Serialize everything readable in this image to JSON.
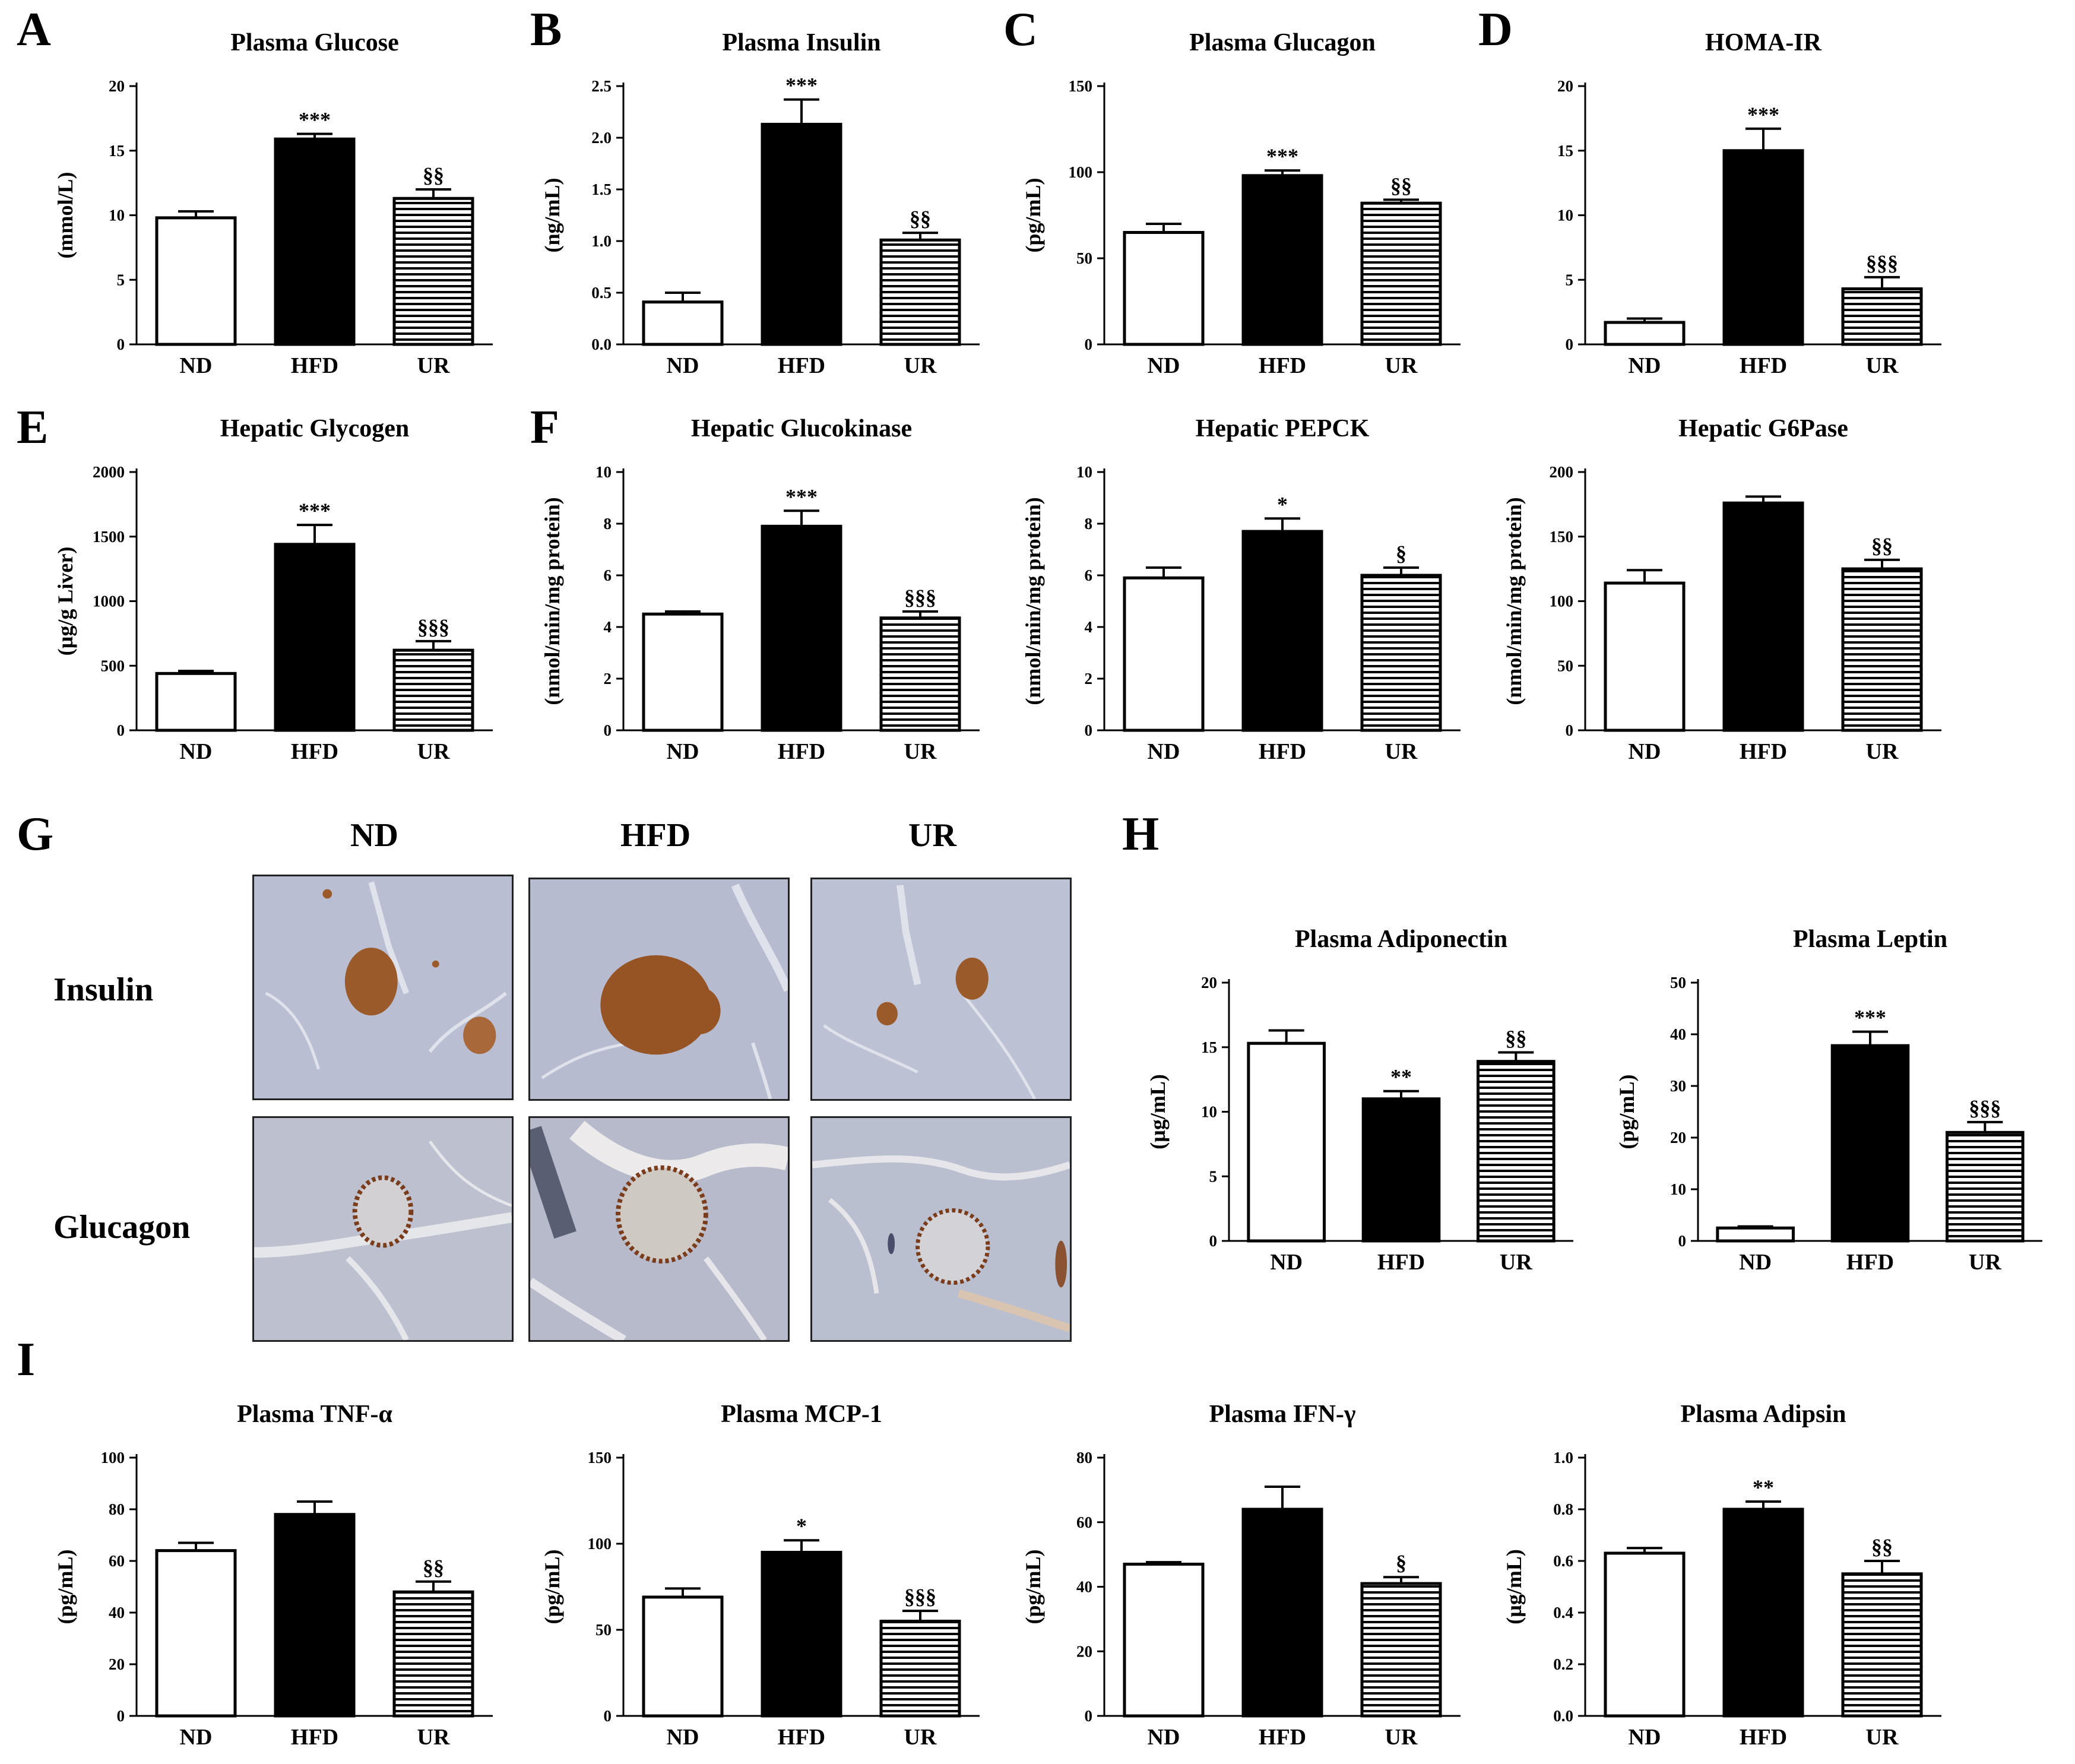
{
  "panel_letters": {
    "A": "A",
    "B": "B",
    "C": "C",
    "D": "D",
    "E": "E",
    "F": "F",
    "G": "G",
    "H": "H",
    "I": "I"
  },
  "histology": {
    "columns": [
      "ND",
      "HFD",
      "UR"
    ],
    "rows": [
      "Insulin",
      "Glucagon"
    ]
  },
  "colors": {
    "nd": "#ffffff",
    "hfd": "#000000",
    "ur_stripe": "#000000",
    "stain": "#8b4a1e",
    "tissue": "#b9bed2"
  },
  "chart_data": [
    {
      "id": "glucose",
      "type": "bar",
      "title": "Plasma Glucose",
      "ylabel": "(mmol/L)",
      "categories": [
        "ND",
        "HFD",
        "UR"
      ],
      "values": [
        9.8,
        15.9,
        11.3
      ],
      "errors": [
        0.5,
        0.4,
        0.7
      ],
      "ylim": [
        0,
        20
      ],
      "yticks": [
        "0",
        "5",
        "10",
        "15",
        "20"
      ],
      "annotations": [
        "",
        "***",
        "§§"
      ]
    },
    {
      "id": "insulin",
      "type": "bar",
      "title": "Plasma Insulin",
      "ylabel": "(ng/mL)",
      "categories": [
        "ND",
        "HFD",
        "UR"
      ],
      "values": [
        0.41,
        2.13,
        1.01
      ],
      "errors": [
        0.09,
        0.24,
        0.07
      ],
      "ylim": [
        0,
        2.5
      ],
      "yticks": [
        "0.0",
        "0.5",
        "1.0",
        "1.5",
        "2.0",
        "2.5"
      ],
      "annotations": [
        "",
        "***",
        "§§"
      ]
    },
    {
      "id": "glucagon",
      "type": "bar",
      "title": "Plasma Glucagon",
      "ylabel": "(pg/mL)",
      "categories": [
        "ND",
        "HFD",
        "UR"
      ],
      "values": [
        65,
        98,
        82
      ],
      "errors": [
        5,
        3,
        2
      ],
      "ylim": [
        0,
        150
      ],
      "yticks": [
        "0",
        "50",
        "100",
        "150"
      ],
      "annotations": [
        "",
        "***",
        "§§"
      ]
    },
    {
      "id": "homa",
      "type": "bar",
      "title": "HOMA-IR",
      "ylabel": "",
      "categories": [
        "ND",
        "HFD",
        "UR"
      ],
      "values": [
        1.7,
        15.0,
        4.3
      ],
      "errors": [
        0.3,
        1.7,
        0.9
      ],
      "ylim": [
        0,
        20
      ],
      "yticks": [
        "0",
        "5",
        "10",
        "15",
        "20"
      ],
      "annotations": [
        "",
        "***",
        "§§§"
      ]
    },
    {
      "id": "glycogen",
      "type": "bar",
      "title": "Hepatic Glycogen",
      "ylabel": "(µg/g Liver)",
      "categories": [
        "ND",
        "HFD",
        "UR"
      ],
      "values": [
        440,
        1440,
        620
      ],
      "errors": [
        20,
        150,
        70
      ],
      "ylim": [
        0,
        2000
      ],
      "yticks": [
        "0",
        "500",
        "1000",
        "1500",
        "2000"
      ],
      "annotations": [
        "",
        "***",
        "§§§"
      ]
    },
    {
      "id": "glucokinase",
      "type": "bar",
      "title": "Hepatic Glucokinase",
      "ylabel": "(nmol/min/mg protein)",
      "categories": [
        "ND",
        "HFD",
        "UR"
      ],
      "values": [
        4.5,
        7.9,
        4.35
      ],
      "errors": [
        0.1,
        0.6,
        0.25
      ],
      "ylim": [
        0,
        10
      ],
      "yticks": [
        "0",
        "2",
        "4",
        "6",
        "8",
        "10"
      ],
      "annotations": [
        "",
        "***",
        "§§§"
      ]
    },
    {
      "id": "pepck",
      "type": "bar",
      "title": "Hepatic PEPCK",
      "ylabel": "(nmol/min/mg protein)",
      "categories": [
        "ND",
        "HFD",
        "UR"
      ],
      "values": [
        5.9,
        7.7,
        6.0
      ],
      "errors": [
        0.4,
        0.5,
        0.3
      ],
      "ylim": [
        0,
        10
      ],
      "yticks": [
        "0",
        "2",
        "4",
        "6",
        "8",
        "10"
      ],
      "annotations": [
        "",
        "*",
        "§"
      ]
    },
    {
      "id": "g6pase",
      "type": "bar",
      "title": "Hepatic G6Pase",
      "ylabel": "(nmol/min/mg protein)",
      "categories": [
        "ND",
        "HFD",
        "UR"
      ],
      "values": [
        114,
        176,
        125
      ],
      "errors": [
        10,
        5,
        7
      ],
      "ylim": [
        0,
        200
      ],
      "yticks": [
        "0",
        "50",
        "100",
        "150",
        "200"
      ],
      "annotations": [
        "",
        "",
        "§§"
      ]
    },
    {
      "id": "adiponectin",
      "type": "bar",
      "title": "Plasma Adiponectin",
      "ylabel": "(µg/mL)",
      "categories": [
        "ND",
        "HFD",
        "UR"
      ],
      "values": [
        15.3,
        11.0,
        13.9
      ],
      "errors": [
        1.0,
        0.6,
        0.7
      ],
      "ylim": [
        0,
        20
      ],
      "yticks": [
        "0",
        "5",
        "10",
        "15",
        "20"
      ],
      "annotations": [
        "",
        "**",
        "§§"
      ]
    },
    {
      "id": "leptin",
      "type": "bar",
      "title": "Plasma Leptin",
      "ylabel": "(pg/mL)",
      "categories": [
        "ND",
        "HFD",
        "UR"
      ],
      "values": [
        2.5,
        37.8,
        21.0
      ],
      "errors": [
        0.3,
        2.7,
        2.0
      ],
      "ylim": [
        0,
        50
      ],
      "yticks": [
        "0",
        "10",
        "20",
        "30",
        "40",
        "50"
      ],
      "annotations": [
        "",
        "***",
        "§§§"
      ]
    },
    {
      "id": "tnf",
      "type": "bar",
      "title": "Plasma TNF-α",
      "ylabel": "(pg/mL)",
      "categories": [
        "ND",
        "HFD",
        "UR"
      ],
      "values": [
        64,
        78,
        48
      ],
      "errors": [
        3,
        5,
        4
      ],
      "ylim": [
        0,
        100
      ],
      "yticks": [
        "0",
        "20",
        "40",
        "60",
        "80",
        "100"
      ],
      "annotations": [
        "",
        "",
        "§§"
      ]
    },
    {
      "id": "mcp1",
      "type": "bar",
      "title": "Plasma MCP-1",
      "ylabel": "(pg/mL)",
      "categories": [
        "ND",
        "HFD",
        "UR"
      ],
      "values": [
        69,
        95,
        55
      ],
      "errors": [
        5,
        7,
        6
      ],
      "ylim": [
        0,
        150
      ],
      "yticks": [
        "0",
        "50",
        "100",
        "150"
      ],
      "annotations": [
        "",
        "*",
        "§§§"
      ]
    },
    {
      "id": "ifn",
      "type": "bar",
      "title": "Plasma IFN-γ",
      "ylabel": "(pg/mL)",
      "categories": [
        "ND",
        "HFD",
        "UR"
      ],
      "values": [
        47,
        64,
        41
      ],
      "errors": [
        0.6,
        7,
        2
      ],
      "ylim": [
        0,
        80
      ],
      "yticks": [
        "0",
        "20",
        "40",
        "60",
        "80"
      ],
      "annotations": [
        "",
        "",
        "§"
      ]
    },
    {
      "id": "adipsin",
      "type": "bar",
      "title": "Plasma Adipsin",
      "ylabel": "(µg/mL)",
      "categories": [
        "ND",
        "HFD",
        "UR"
      ],
      "values": [
        0.63,
        0.8,
        0.55
      ],
      "errors": [
        0.02,
        0.03,
        0.05
      ],
      "ylim": [
        0,
        1.0
      ],
      "yticks": [
        "0.0",
        "0.2",
        "0.4",
        "0.6",
        "0.8",
        "1.0"
      ],
      "annotations": [
        "",
        "**",
        "§§"
      ]
    }
  ]
}
